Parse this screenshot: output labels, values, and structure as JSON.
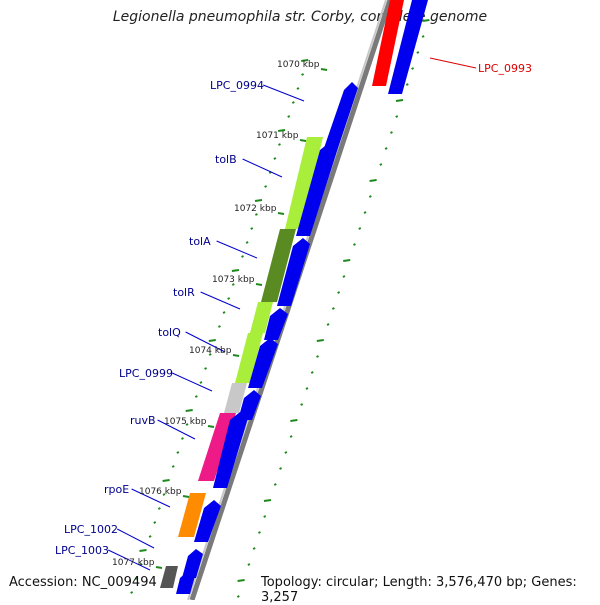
{
  "title": "Legionella pneumophila str. Corby, complete genome",
  "accession": "Accession: NC_009494",
  "topology": "Topology: circular; Length: 3,576,470 bp; Genes: 3,257",
  "kbp_labels": [
    "1070 kbp",
    "1071 kbp",
    "1072 kbp",
    "1073 kbp",
    "1074 kbp",
    "1075 kbp",
    "1076 kbp",
    "1077 kbp"
  ],
  "genes": [
    {
      "name": "LPC_0993",
      "color": "#dd0000"
    },
    {
      "name": "LPC_0994",
      "color": "#00008b"
    },
    {
      "name": "tolB",
      "color": "#00008b"
    },
    {
      "name": "tolA",
      "color": "#00008b"
    },
    {
      "name": "tolR",
      "color": "#00008b"
    },
    {
      "name": "tolQ",
      "color": "#00008b"
    },
    {
      "name": "LPC_0999",
      "color": "#00008b"
    },
    {
      "name": "ruvB",
      "color": "#00008b"
    },
    {
      "name": "rpoE",
      "color": "#00008b"
    },
    {
      "name": "LPC_1002",
      "color": "#00008b"
    },
    {
      "name": "LPC_1003",
      "color": "#00008b"
    }
  ],
  "colors": {
    "cds": "#0000ee",
    "cds_highlight": "#ff0000",
    "yellowgreen": "#a8ee3a",
    "olive": "#5a8a22",
    "gray": "#c8c8c8",
    "pink": "#ee1a88",
    "orange": "#ff8c00",
    "darkgray": "#555555",
    "backbone": "#888888",
    "tick": "#1e8a1e"
  }
}
